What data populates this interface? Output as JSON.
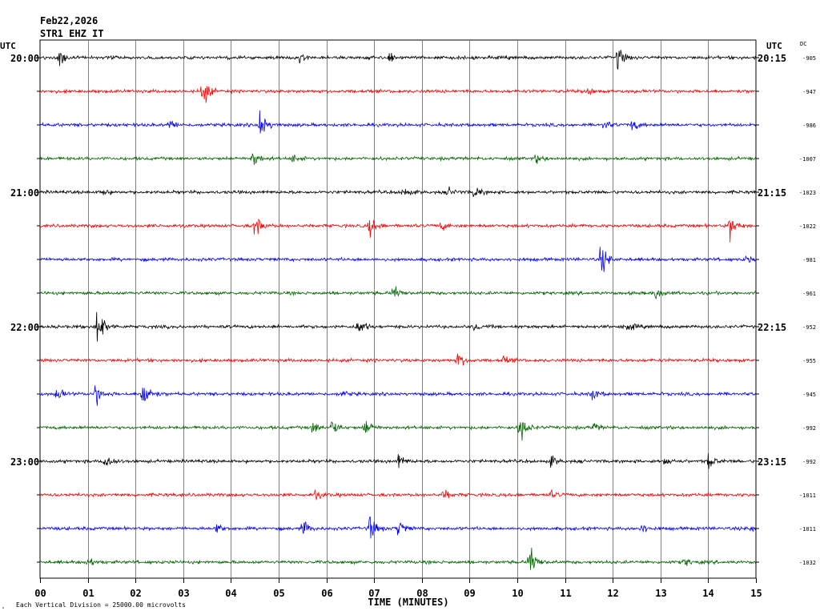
{
  "header": {
    "date": "Feb22,2026",
    "station": "STR1 EHZ IT"
  },
  "left_axis_label": "UTC",
  "right_axis_label": "UTC",
  "dc_label": "DC",
  "footer": {
    "xlabel": "TIME (MINUTES)",
    "scale_note": "Each Vertical Division = 25000.00 microvolts"
  },
  "colors": {
    "trace_cycle": [
      "#000000",
      "#ff0000",
      "#0000ff",
      "#006400"
    ],
    "grid": "#808080",
    "text": "#000000"
  },
  "chart_data": {
    "type": "line",
    "title": "",
    "xlabel": "TIME (MINUTES)",
    "xlim": [
      0,
      15
    ],
    "x_ticks": [
      "00",
      "01",
      "02",
      "03",
      "04",
      "05",
      "06",
      "07",
      "08",
      "09",
      "10",
      "11",
      "12",
      "13",
      "14",
      "15"
    ],
    "grid": true,
    "rows": [
      {
        "left_time": "20:00",
        "right_time": "20:15",
        "dc": "-905",
        "color": "#000000",
        "events": [
          [
            0.4,
            1.0
          ],
          [
            5.45,
            0.6
          ],
          [
            7.3,
            0.6
          ],
          [
            12.1,
            1.3
          ]
        ]
      },
      {
        "left_time": "",
        "right_time": "",
        "dc": "-947",
        "color": "#ff0000",
        "events": [
          [
            3.4,
            2.0
          ],
          [
            11.45,
            0.5
          ]
        ]
      },
      {
        "left_time": "",
        "right_time": "",
        "dc": "-986",
        "color": "#0000ff",
        "events": [
          [
            2.7,
            0.6
          ],
          [
            4.6,
            2.0
          ],
          [
            11.8,
            0.6
          ],
          [
            12.4,
            0.7
          ]
        ]
      },
      {
        "left_time": "",
        "right_time": "",
        "dc": "-1007",
        "color": "#006400",
        "events": [
          [
            4.45,
            1.0
          ],
          [
            5.3,
            0.5
          ],
          [
            10.4,
            0.5
          ]
        ]
      },
      {
        "left_time": "21:00",
        "right_time": "21:15",
        "dc": "-1023",
        "color": "#000000",
        "events": [
          [
            1.3,
            0.4
          ],
          [
            7.6,
            0.6
          ],
          [
            8.55,
            0.5
          ],
          [
            9.1,
            0.8
          ]
        ]
      },
      {
        "left_time": "",
        "right_time": "",
        "dc": "-1022",
        "color": "#ff0000",
        "events": [
          [
            4.5,
            1.4
          ],
          [
            6.9,
            1.1
          ],
          [
            8.4,
            0.5
          ],
          [
            14.45,
            1.5
          ]
        ]
      },
      {
        "left_time": "",
        "right_time": "",
        "dc": "-981",
        "color": "#0000ff",
        "events": [
          [
            11.75,
            1.8
          ],
          [
            14.8,
            0.5
          ]
        ]
      },
      {
        "left_time": "",
        "right_time": "",
        "dc": "-961",
        "color": "#006400",
        "events": [
          [
            7.4,
            1.0
          ],
          [
            12.9,
            0.7
          ]
        ]
      },
      {
        "left_time": "22:00",
        "right_time": "22:15",
        "dc": "-952",
        "color": "#000000",
        "events": [
          [
            1.2,
            2.8
          ],
          [
            6.65,
            1.2
          ],
          [
            9.1,
            0.4
          ],
          [
            12.3,
            0.6
          ]
        ]
      },
      {
        "left_time": "",
        "right_time": "",
        "dc": "-955",
        "color": "#ff0000",
        "events": [
          [
            8.75,
            1.0
          ],
          [
            9.7,
            0.4
          ]
        ]
      },
      {
        "left_time": "",
        "right_time": "",
        "dc": "-945",
        "color": "#0000ff",
        "events": [
          [
            0.35,
            0.8
          ],
          [
            1.15,
            1.5
          ],
          [
            2.15,
            2.5
          ],
          [
            6.3,
            0.4
          ],
          [
            11.55,
            0.8
          ]
        ]
      },
      {
        "left_time": "",
        "right_time": "",
        "dc": "-992",
        "color": "#006400",
        "events": [
          [
            5.7,
            0.7
          ],
          [
            6.1,
            0.9
          ],
          [
            6.8,
            1.1
          ],
          [
            10.05,
            1.8
          ],
          [
            11.6,
            0.5
          ]
        ]
      },
      {
        "left_time": "23:00",
        "right_time": "23:15",
        "dc": "-992",
        "color": "#000000",
        "events": [
          [
            1.35,
            1.3
          ],
          [
            7.5,
            0.8
          ],
          [
            10.7,
            0.6
          ],
          [
            13.1,
            0.5
          ],
          [
            14.0,
            0.9
          ]
        ]
      },
      {
        "left_time": "",
        "right_time": "",
        "dc": "-1011",
        "color": "#ff0000",
        "events": [
          [
            5.75,
            0.6
          ],
          [
            8.45,
            0.6
          ],
          [
            10.7,
            0.4
          ]
        ]
      },
      {
        "left_time": "",
        "right_time": "",
        "dc": "-1011",
        "color": "#0000ff",
        "events": [
          [
            3.7,
            0.6
          ],
          [
            5.5,
            0.9
          ],
          [
            6.9,
            1.6
          ],
          [
            7.5,
            1.2
          ],
          [
            12.6,
            0.6
          ],
          [
            14.9,
            0.5
          ]
        ]
      },
      {
        "left_time": "",
        "right_time": "",
        "dc": "-1032",
        "color": "#006400",
        "events": [
          [
            1.0,
            0.6
          ],
          [
            10.25,
            2.3
          ],
          [
            13.5,
            0.5
          ]
        ]
      }
    ]
  }
}
